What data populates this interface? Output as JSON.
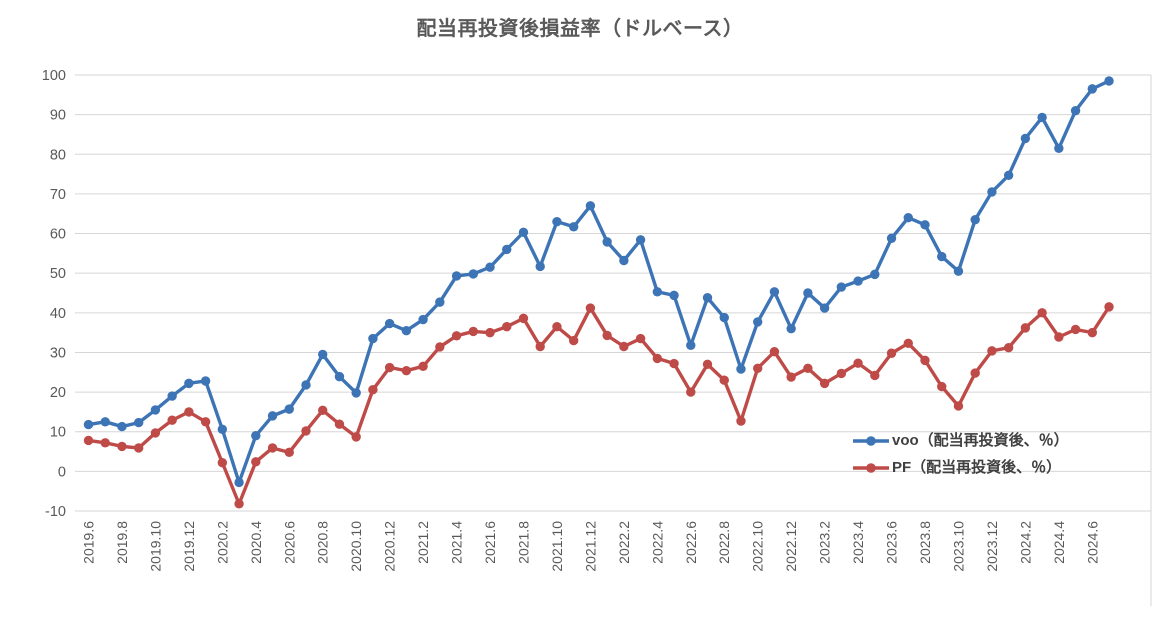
{
  "title": "配当再投資後損益率（ドルベース）",
  "colors": {
    "voo": "#3D74B5",
    "pf": "#BE4B48",
    "grid": "#D6D6D6",
    "axis_text": "#595959",
    "title_text": "#595959",
    "background": "#FFFFFF"
  },
  "legend": [
    {
      "name": "voo",
      "label": "voo（配当再投資後、％）",
      "color": "#3D74B5"
    },
    {
      "name": "pf",
      "label": "PF（配当再投資後、％）",
      "color": "#BE4B48"
    }
  ],
  "chart_data": {
    "type": "line",
    "title": "配当再投資後損益率（ドルベース）",
    "xlabel": "",
    "ylabel": "",
    "ylim": [
      -10,
      100
    ],
    "y_ticks": [
      100,
      90,
      80,
      70,
      60,
      50,
      40,
      30,
      20,
      10,
      0,
      -10
    ],
    "x_tick_every": 2,
    "grid": "horizontal",
    "legend_position": "right-middle",
    "marker": "circle",
    "categories": [
      "2019.6",
      "2019.7",
      "2019.8",
      "2019.9",
      "2019.10",
      "2019.11",
      "2019.12",
      "2020.1",
      "2020.2",
      "2020.3",
      "2020.4",
      "2020.5",
      "2020.6",
      "2020.7",
      "2020.8",
      "2020.9",
      "2020.10",
      "2020.11",
      "2020.12",
      "2021.1",
      "2021.2",
      "2021.3",
      "2021.4",
      "2021.5",
      "2021.6",
      "2021.7",
      "2021.8",
      "2021.9",
      "2021.10",
      "2021.11",
      "2021.12",
      "2022.1",
      "2022.2",
      "2022.3",
      "2022.4",
      "2022.5",
      "2022.6",
      "2022.7",
      "2022.8",
      "2022.9",
      "2022.10",
      "2022.11",
      "2022.12",
      "2023.1",
      "2023.2",
      "2023.3",
      "2023.4",
      "2023.5",
      "2023.6",
      "2023.7",
      "2023.8",
      "2023.9",
      "2023.10",
      "2023.11",
      "2023.12",
      "2024.1",
      "2024.2",
      "2024.3",
      "2024.4",
      "2024.5",
      "2024.6",
      "2024.7"
    ],
    "series": [
      {
        "name": "voo（配当再投資後、％）",
        "color": "#3D74B5",
        "values": [
          11.8,
          12.5,
          11.3,
          12.3,
          15.5,
          19.0,
          22.2,
          22.8,
          10.6,
          -2.8,
          9.0,
          14.0,
          15.7,
          21.8,
          29.5,
          23.9,
          19.8,
          33.5,
          37.3,
          35.5,
          38.3,
          42.7,
          49.3,
          49.8,
          51.5,
          56.0,
          60.3,
          51.7,
          63.0,
          61.7,
          67.0,
          57.9,
          53.2,
          58.4,
          45.3,
          44.4,
          31.8,
          43.8,
          38.8,
          25.8,
          37.7,
          45.3,
          36.0,
          45.0,
          41.2,
          46.5,
          48.0,
          49.7,
          58.8,
          64.0,
          62.2,
          54.2,
          50.5,
          63.5,
          70.5,
          74.7,
          84.0,
          89.3,
          81.5,
          91.0,
          96.5,
          98.5
        ]
      },
      {
        "name": "PF（配当再投資後、％）",
        "color": "#BE4B48",
        "values": [
          7.8,
          7.2,
          6.3,
          5.9,
          9.7,
          12.9,
          15.0,
          12.5,
          2.2,
          -8.2,
          2.4,
          5.9,
          4.8,
          10.2,
          15.4,
          11.9,
          8.7,
          20.6,
          26.2,
          25.4,
          26.5,
          31.4,
          34.2,
          35.3,
          35.0,
          36.5,
          38.6,
          31.5,
          36.5,
          33.0,
          41.2,
          34.3,
          31.5,
          33.5,
          28.5,
          27.2,
          20.0,
          27.0,
          23.0,
          12.7,
          26.0,
          30.2,
          23.8,
          26.0,
          22.2,
          24.7,
          27.3,
          24.2,
          29.8,
          32.3,
          28.0,
          21.4,
          16.5,
          24.8,
          30.4,
          31.2,
          36.2,
          40.0,
          33.9,
          35.8,
          35.0,
          41.5
        ]
      }
    ]
  }
}
